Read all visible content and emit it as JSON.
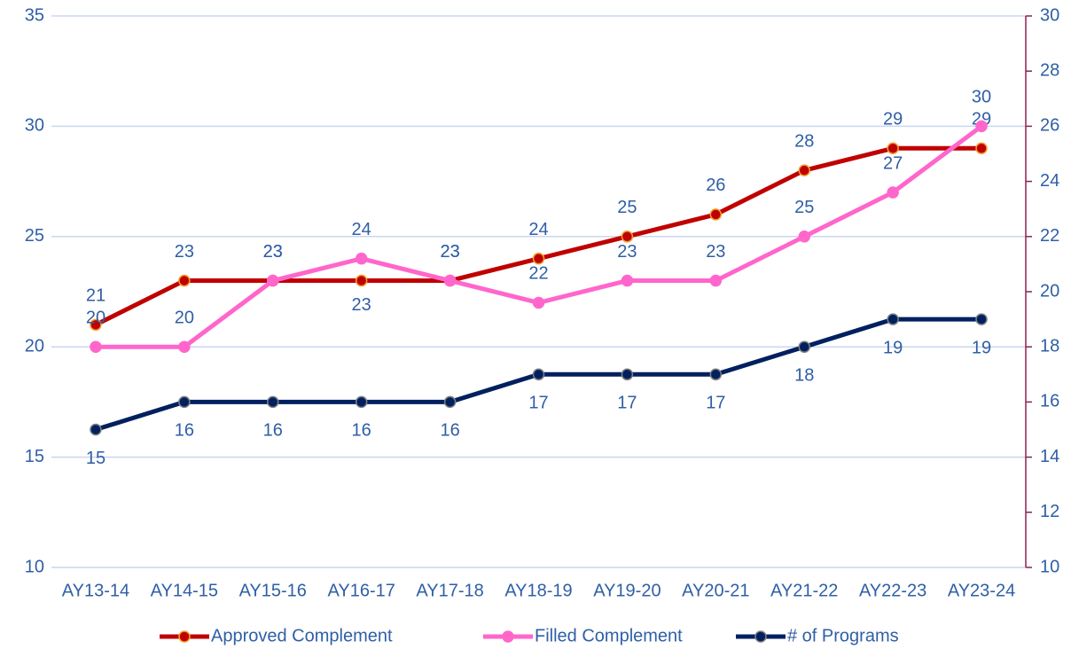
{
  "chart_data": {
    "type": "line",
    "categories": [
      "AY13-14",
      "AY14-15",
      "AY15-16",
      "AY16-17",
      "AY17-18",
      "AY18-19",
      "AY19-20",
      "AY20-21",
      "AY21-22",
      "AY22-23",
      "AY23-24"
    ],
    "series": [
      {
        "name": "Approved Complement",
        "color": "#c00000",
        "values": [
          21,
          23,
          23,
          23,
          23,
          24,
          25,
          26,
          28,
          29,
          29
        ]
      },
      {
        "name": "Filled Complement",
        "color": "#ff66cc",
        "values": [
          20,
          20,
          23,
          24,
          23,
          22,
          23,
          23,
          25,
          27,
          30
        ]
      },
      {
        "name": "# of Programs",
        "color": "#002060",
        "axis": "y2",
        "values": [
          15,
          16,
          16,
          16,
          16,
          17,
          17,
          17,
          18,
          19,
          19
        ]
      }
    ],
    "ylim": [
      10,
      35
    ],
    "yticks": [
      10,
      15,
      20,
      25,
      30,
      35
    ],
    "y2lim": [
      10,
      30
    ],
    "y2ticks": [
      10,
      12,
      14,
      16,
      18,
      20,
      22,
      24,
      26,
      28,
      30
    ],
    "grid": true,
    "legend": "bottom"
  }
}
